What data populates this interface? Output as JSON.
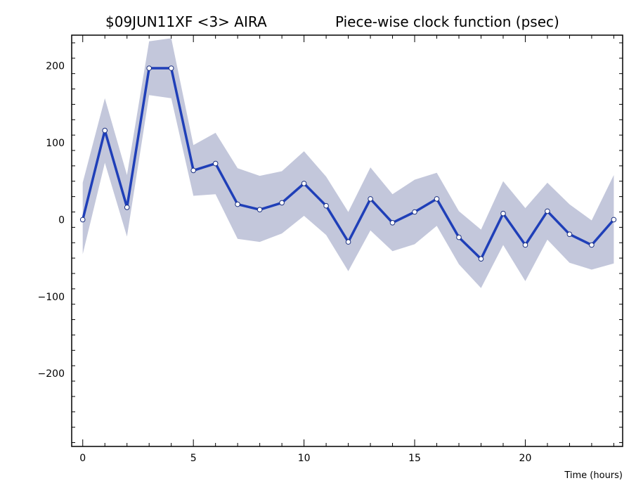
{
  "chart_data": {
    "type": "line",
    "title_left": "$09JUN11XF <3>  AIRA",
    "title_right": "Piece-wise clock function (psec)",
    "xlabel": "Time (hours)",
    "ylabel": "",
    "xlim": [
      -0.5,
      24.4
    ],
    "ylim": [
      -295,
      240
    ],
    "xticks": [
      0,
      5,
      10,
      15,
      20
    ],
    "xtick_labels": [
      "0",
      "5",
      "10",
      "15",
      "20"
    ],
    "yticks": [
      200,
      100,
      0,
      -100,
      -200
    ],
    "ytick_labels": [
      "200",
      "100",
      "0",
      "−100",
      "−200"
    ],
    "series": [
      {
        "x": [
          0,
          1,
          2,
          3,
          4,
          5,
          6,
          7,
          8,
          9,
          10,
          11,
          12,
          13,
          14,
          15,
          16,
          17,
          18,
          19,
          20,
          21,
          22,
          23,
          24
        ],
        "values": [
          0,
          116,
          16,
          197,
          197,
          64,
          73,
          20,
          13,
          22,
          47,
          18,
          -29,
          27,
          -4,
          10,
          27,
          -23,
          -51,
          8,
          -33,
          11,
          -19,
          -33,
          0
        ],
        "upper": [
          48,
          158,
          58,
          232,
          236,
          97,
          113,
          67,
          57,
          63,
          89,
          56,
          10,
          68,
          33,
          52,
          61,
          11,
          -13,
          50,
          15,
          48,
          20,
          -1,
          58
        ],
        "lower": [
          -45,
          74,
          -22,
          162,
          158,
          31,
          33,
          -25,
          -29,
          -18,
          5,
          -20,
          -67,
          -14,
          -41,
          -32,
          -8,
          -58,
          -89,
          -33,
          -80,
          -26,
          -56,
          -65,
          -57
        ]
      }
    ],
    "colors": {
      "line": "#1f3fb8",
      "band": "#c3c7db",
      "marker_fill": "#ffffff"
    },
    "grid": false,
    "legend": "none"
  }
}
